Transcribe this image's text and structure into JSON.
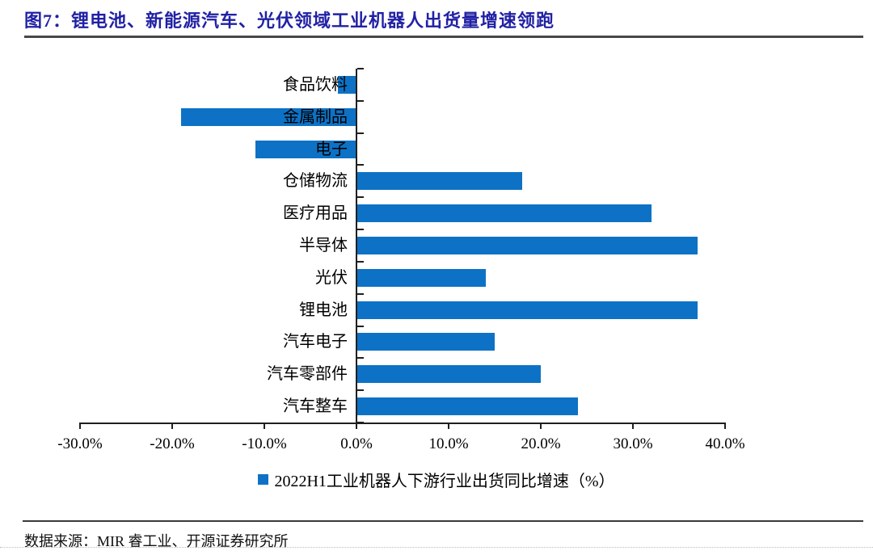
{
  "figure": {
    "title": "图7：锂电池、新能源汽车、光伏领域工业机器人出货量增速领跑",
    "source": "数据来源：MIR 睿工业、开源证券研究所"
  },
  "colors": {
    "bar": "#0d72c5",
    "title": "#2121a5",
    "axis": "#1f1f1f",
    "title_rule": "#474747",
    "source_rule": "#3a3a3a"
  },
  "chart_data": {
    "type": "bar",
    "orientation": "horizontal",
    "title": "图7：锂电池、新能源汽车、光伏领域工业机器人出货量增速领跑",
    "legend": "2022H1工业机器人下游行业出货同比增速（%）",
    "legend_position": "bottom",
    "grid": false,
    "unit": "%",
    "xlim": [
      -30,
      40
    ],
    "x_tick_labels": [
      "-30.0%",
      "-20.0%",
      "-10.0%",
      "0.0%",
      "10.0%",
      "20.0%",
      "30.0%",
      "40.0%"
    ],
    "x_tick_values": [
      -30,
      -20,
      -10,
      0,
      10,
      20,
      30,
      40
    ],
    "categories": [
      "食品饮料",
      "金属制品",
      "电子",
      "仓储物流",
      "医疗用品",
      "半导体",
      "光伏",
      "锂电池",
      "汽车电子",
      "汽车零部件",
      "汽车整车"
    ],
    "values": [
      -2,
      -19,
      -11,
      18,
      32,
      37,
      14,
      37,
      15,
      20,
      24
    ]
  }
}
